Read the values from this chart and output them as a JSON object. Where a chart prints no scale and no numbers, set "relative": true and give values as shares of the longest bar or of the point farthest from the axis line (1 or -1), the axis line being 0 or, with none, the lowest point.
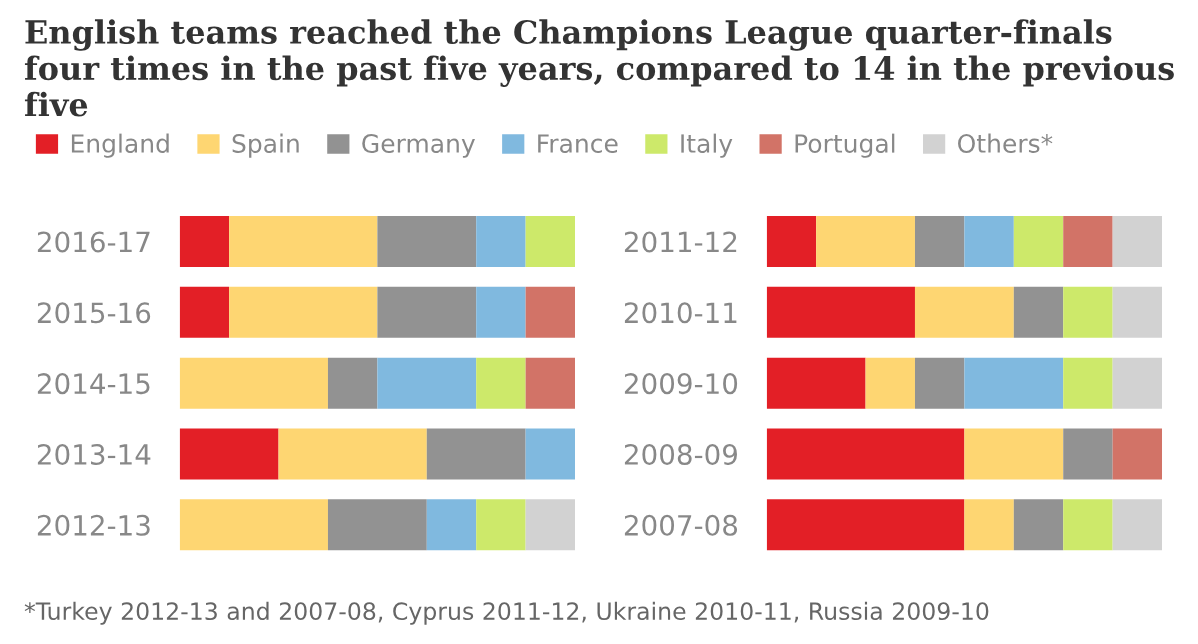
{
  "chart_data": [
    {
      "type": "bar",
      "orientation": "horizontal",
      "stacked": true,
      "relative": true,
      "legend": "top",
      "grid": false,
      "title": "English teams reached the Champions League quarter-finals four times in the past five years, compared to 14 in the previous five",
      "categories": [
        "2016-17",
        "2015-16",
        "2014-15",
        "2013-14",
        "2012-13"
      ],
      "series": [
        {
          "name": "England",
          "color": "#e31f26",
          "values": [
            0.125,
            0.125,
            0,
            0.25,
            0
          ]
        },
        {
          "name": "Spain",
          "color": "#fed672",
          "values": [
            0.375,
            0.375,
            0.375,
            0.375,
            0.375
          ]
        },
        {
          "name": "Germany",
          "color": "#929292",
          "values": [
            0.25,
            0.25,
            0.125,
            0.25,
            0.25
          ]
        },
        {
          "name": "France",
          "color": "#80b9df",
          "values": [
            0.125,
            0.125,
            0.25,
            0.125,
            0.125
          ]
        },
        {
          "name": "Italy",
          "color": "#cde96a",
          "values": [
            0.125,
            0,
            0.125,
            0,
            0.125
          ]
        },
        {
          "name": "Portugal",
          "color": "#d27367",
          "values": [
            0,
            0.125,
            0.125,
            0,
            0
          ]
        },
        {
          "name": "Others*",
          "color": "#d2d2d2",
          "values": [
            0,
            0,
            0,
            0,
            0.125
          ]
        }
      ]
    },
    {
      "type": "bar",
      "orientation": "horizontal",
      "stacked": true,
      "relative": true,
      "grid": false,
      "annotations": [
        "*Turkey 2012-13 and 2007-08, Cyprus 2011-12, Ukraine 2010-11, Russia 2009-10"
      ],
      "categories": [
        "2011-12",
        "2010-11",
        "2009-10",
        "2008-09",
        "2007-08"
      ],
      "series": [
        {
          "color": "#e31f26",
          "values": [
            0.125,
            0.375,
            0.25,
            0.5,
            0.5
          ]
        },
        {
          "color": "#fed672",
          "values": [
            0.25,
            0.25,
            0.125,
            0.25,
            0.125
          ]
        },
        {
          "color": "#929292",
          "values": [
            0.125,
            0.125,
            0.125,
            0.125,
            0.125
          ]
        },
        {
          "color": "#80b9df",
          "values": [
            0.125,
            0,
            0.25,
            0,
            0
          ]
        },
        {
          "color": "#cde96a",
          "values": [
            0.125,
            0.125,
            0.125,
            0,
            0.125
          ]
        },
        {
          "color": "#d27367",
          "values": [
            0.125,
            0,
            0,
            0.125,
            0
          ]
        },
        {
          "color": "#d2d2d2",
          "values": [
            0.125,
            0.125,
            0.125,
            0,
            0.125
          ]
        }
      ]
    }
  ]
}
